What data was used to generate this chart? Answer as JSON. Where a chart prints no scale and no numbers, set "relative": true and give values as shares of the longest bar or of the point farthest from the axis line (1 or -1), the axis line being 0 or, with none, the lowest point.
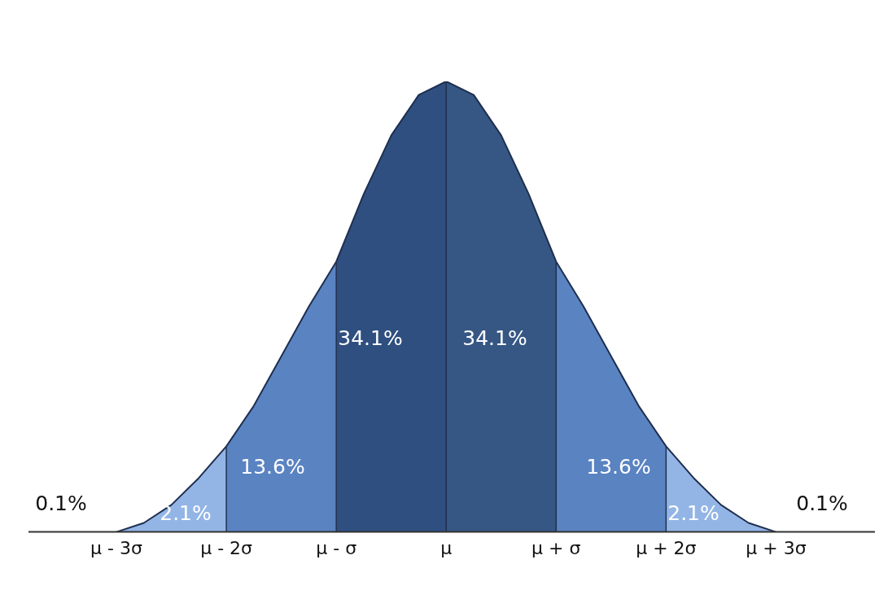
{
  "chart_data": {
    "type": "area",
    "relative": true,
    "xlim": [
      -3.8,
      3.9
    ],
    "xticks": [
      {
        "value": -3,
        "label": "μ - 3σ"
      },
      {
        "value": -2,
        "label": "μ - 2σ"
      },
      {
        "value": -1,
        "label": "μ - σ"
      },
      {
        "value": 0,
        "label": "μ"
      },
      {
        "value": 1,
        "label": "μ + σ"
      },
      {
        "value": 2,
        "label": "μ + 2σ"
      },
      {
        "value": 3,
        "label": "μ + 3σ"
      }
    ],
    "tick_labels": "x",
    "grid": false,
    "legend": false,
    "marker": "none",
    "series": [
      {
        "color": "#93b5e6",
        "x": [
          -3,
          -2.75,
          -2.5,
          -2.25,
          -2
        ],
        "values": [
          0,
          0.02,
          0.06,
          0.12,
          0.19
        ]
      },
      {
        "color": "#5a83c2",
        "x": [
          -2,
          -1.75,
          -1.5,
          -1.25,
          -1
        ],
        "values": [
          0.19,
          0.28,
          0.39,
          0.5,
          0.6
        ]
      },
      {
        "color": "#2f4f80",
        "x": [
          -1,
          -0.75,
          -0.5,
          -0.25,
          0
        ],
        "values": [
          0.6,
          0.75,
          0.88,
          0.97,
          1
        ]
      },
      {
        "color": "#365784",
        "x": [
          0,
          0.25,
          0.5,
          0.75,
          1
        ],
        "values": [
          1,
          0.97,
          0.88,
          0.75,
          0.6
        ]
      },
      {
        "color": "#5a83c2",
        "x": [
          1,
          1.25,
          1.5,
          1.75,
          2
        ],
        "values": [
          0.6,
          0.5,
          0.39,
          0.28,
          0.19
        ]
      },
      {
        "color": "#93b5e6",
        "x": [
          2,
          2.25,
          2.5,
          2.75,
          3
        ],
        "values": [
          0.19,
          0.12,
          0.06,
          0.02,
          0
        ]
      }
    ],
    "ref_lines": [
      {
        "axis": "x",
        "value": -2,
        "color": "#1e2f4f"
      },
      {
        "axis": "x",
        "value": -1,
        "color": "#1e2f4f"
      },
      {
        "axis": "x",
        "value": 0,
        "color": "#1e2f4f"
      },
      {
        "axis": "x",
        "value": 1,
        "color": "#1e2f4f"
      },
      {
        "axis": "x",
        "value": 2,
        "color": "#1e2f4f"
      }
    ],
    "annotations": [
      "0.1%",
      "2.1%",
      "13.6%",
      "34.1%",
      "34.1%",
      "13.6%",
      "2.1%",
      "0.1%"
    ]
  }
}
